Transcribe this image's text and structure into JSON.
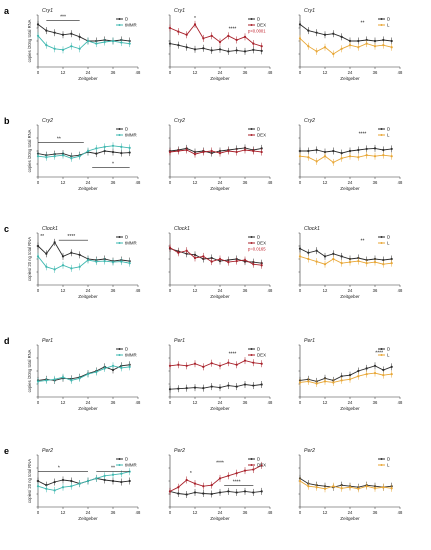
{
  "colors": {
    "D": "#2b2b2b",
    "tMMR": "#3fb8b0",
    "DEX": "#a8202a",
    "L": "#e8a634",
    "pval": "#c0202a"
  },
  "chart_data": [
    {
      "type": "line",
      "row": "a",
      "col": 0,
      "gene": "Cry1",
      "ylabel": "copies /20ng total RNA",
      "xlabel": "Zeitgeber",
      "x": [
        0,
        4,
        8,
        12,
        16,
        20,
        24,
        28,
        32,
        36,
        40,
        44
      ],
      "xticks": [
        0,
        12,
        24,
        36,
        48
      ],
      "xlim": [
        0,
        48
      ],
      "ylim": [
        0,
        1
      ],
      "series": [
        {
          "name": "D",
          "key": "D",
          "values": [
            0.82,
            0.7,
            0.66,
            0.62,
            0.64,
            0.58,
            0.5,
            0.5,
            0.52,
            0.5,
            0.52,
            0.5
          ]
        },
        {
          "name": "tMMR",
          "key": "tMMR",
          "values": [
            0.6,
            0.42,
            0.35,
            0.33,
            0.4,
            0.35,
            0.5,
            0.45,
            0.48,
            0.5,
            0.47,
            0.45
          ]
        }
      ],
      "annotations": [
        {
          "text": "***",
          "x": 12,
          "y": 0.93,
          "line": [
            4,
            20
          ]
        }
      ]
    },
    {
      "type": "line",
      "row": "a",
      "col": 1,
      "gene": "Cry1",
      "ylabel": "",
      "xlabel": "Zeitgeber",
      "x": [
        0,
        4,
        8,
        12,
        16,
        20,
        24,
        28,
        32,
        36,
        40,
        44
      ],
      "xticks": [
        0,
        12,
        24,
        36,
        48
      ],
      "xlim": [
        0,
        48
      ],
      "ylim": [
        0,
        1
      ],
      "series": [
        {
          "name": "D",
          "key": "D",
          "values": [
            0.45,
            0.42,
            0.38,
            0.34,
            0.36,
            0.32,
            0.34,
            0.3,
            0.32,
            0.3,
            0.33,
            0.31
          ]
        },
        {
          "name": "DEX",
          "key": "DEX",
          "values": [
            0.75,
            0.68,
            0.62,
            0.82,
            0.55,
            0.6,
            0.48,
            0.6,
            0.52,
            0.58,
            0.45,
            0.4
          ]
        }
      ],
      "annotations": [
        {
          "text": "*",
          "x": 12,
          "y": 0.9
        },
        {
          "text": "****",
          "x": 30,
          "y": 0.7
        }
      ],
      "pval": "p<0.0001"
    },
    {
      "type": "line",
      "row": "a",
      "col": 2,
      "gene": "Cry1",
      "ylabel": "",
      "xlabel": "Zeitgeber",
      "x": [
        0,
        4,
        8,
        12,
        16,
        20,
        24,
        28,
        32,
        36,
        40,
        44
      ],
      "xticks": [
        0,
        12,
        24,
        36,
        48
      ],
      "xlim": [
        0,
        48
      ],
      "ylim": [
        0,
        1
      ],
      "series": [
        {
          "name": "D",
          "key": "D",
          "values": [
            0.82,
            0.7,
            0.66,
            0.62,
            0.64,
            0.58,
            0.5,
            0.5,
            0.52,
            0.5,
            0.52,
            0.5
          ]
        },
        {
          "name": "L",
          "key": "L",
          "values": [
            0.55,
            0.4,
            0.3,
            0.38,
            0.25,
            0.35,
            0.42,
            0.38,
            0.45,
            0.4,
            0.42,
            0.38
          ]
        }
      ],
      "annotations": [
        {
          "text": "**",
          "x": 30,
          "y": 0.82
        }
      ]
    },
    {
      "type": "line",
      "row": "b",
      "col": 0,
      "gene": "Cry2",
      "ylabel": "copies /20ng total RNA",
      "xlabel": "Zeitgeber",
      "x": [
        0,
        4,
        8,
        12,
        16,
        20,
        24,
        28,
        32,
        36,
        40,
        44
      ],
      "xticks": [
        0,
        12,
        24,
        36,
        48
      ],
      "xlim": [
        0,
        48
      ],
      "ylim": [
        0,
        1
      ],
      "series": [
        {
          "name": "D",
          "key": "D",
          "values": [
            0.45,
            0.42,
            0.44,
            0.45,
            0.4,
            0.42,
            0.48,
            0.45,
            0.5,
            0.48,
            0.46,
            0.47
          ]
        },
        {
          "name": "tMMR",
          "key": "tMMR",
          "values": [
            0.4,
            0.38,
            0.4,
            0.42,
            0.36,
            0.4,
            0.5,
            0.55,
            0.58,
            0.6,
            0.58,
            0.56
          ]
        }
      ],
      "annotations": [
        {
          "text": "**",
          "x": 10,
          "y": 0.7,
          "line": [
            0,
            22
          ]
        },
        {
          "text": "*",
          "x": 36,
          "y": 0.22,
          "line": [
            26,
            44
          ]
        }
      ]
    },
    {
      "type": "line",
      "row": "b",
      "col": 1,
      "gene": "Cry2",
      "ylabel": "",
      "xlabel": "Zeitgeber",
      "x": [
        0,
        4,
        8,
        12,
        16,
        20,
        24,
        28,
        32,
        36,
        40,
        44
      ],
      "xticks": [
        0,
        12,
        24,
        36,
        48
      ],
      "xlim": [
        0,
        48
      ],
      "ylim": [
        0,
        1
      ],
      "series": [
        {
          "name": "D",
          "key": "D",
          "values": [
            0.5,
            0.52,
            0.55,
            0.48,
            0.5,
            0.46,
            0.5,
            0.52,
            0.54,
            0.56,
            0.52,
            0.55
          ]
        },
        {
          "name": "DEX",
          "key": "DEX",
          "values": [
            0.48,
            0.5,
            0.52,
            0.44,
            0.48,
            0.5,
            0.46,
            0.5,
            0.48,
            0.52,
            0.5,
            0.48
          ]
        }
      ],
      "annotations": []
    },
    {
      "type": "line",
      "row": "b",
      "col": 2,
      "gene": "Cry2",
      "ylabel": "",
      "xlabel": "Zeitgeber",
      "x": [
        0,
        4,
        8,
        12,
        16,
        20,
        24,
        28,
        32,
        36,
        40,
        44
      ],
      "xticks": [
        0,
        12,
        24,
        36,
        48
      ],
      "xlim": [
        0,
        48
      ],
      "ylim": [
        0,
        1
      ],
      "series": [
        {
          "name": "D",
          "key": "D",
          "values": [
            0.5,
            0.5,
            0.52,
            0.48,
            0.5,
            0.46,
            0.5,
            0.52,
            0.54,
            0.55,
            0.52,
            0.54
          ]
        },
        {
          "name": "L",
          "key": "L",
          "values": [
            0.4,
            0.38,
            0.3,
            0.4,
            0.28,
            0.36,
            0.4,
            0.38,
            0.42,
            0.4,
            0.42,
            0.4
          ]
        }
      ],
      "annotations": [
        {
          "text": "****",
          "x": 30,
          "y": 0.8
        }
      ]
    },
    {
      "type": "line",
      "row": "c",
      "col": 0,
      "gene": "Clock1",
      "ylabel": "copies/ 20 ng total RNA",
      "xlabel": "Zeitgeber",
      "x": [
        0,
        4,
        8,
        12,
        16,
        20,
        24,
        28,
        32,
        36,
        40,
        44
      ],
      "xticks": [
        0,
        12,
        24,
        36,
        48
      ],
      "xlim": [
        0,
        48
      ],
      "ylim": [
        0,
        1
      ],
      "series": [
        {
          "name": "D",
          "key": "D",
          "values": [
            0.75,
            0.6,
            0.82,
            0.55,
            0.62,
            0.58,
            0.5,
            0.48,
            0.5,
            0.46,
            0.48,
            0.46
          ]
        },
        {
          "name": "tMMR",
          "key": "tMMR",
          "values": [
            0.55,
            0.35,
            0.3,
            0.38,
            0.32,
            0.35,
            0.48,
            0.45,
            0.46,
            0.44,
            0.45,
            0.42
          ]
        }
      ],
      "annotations": [
        {
          "text": "**",
          "x": 2,
          "y": 0.9
        },
        {
          "text": "****",
          "x": 16,
          "y": 0.9,
          "line": [
            10,
            24
          ]
        }
      ]
    },
    {
      "type": "line",
      "row": "c",
      "col": 1,
      "gene": "Clock1",
      "ylabel": "",
      "xlabel": "Zeitgeber",
      "x": [
        0,
        4,
        8,
        12,
        16,
        20,
        24,
        28,
        32,
        36,
        40,
        44
      ],
      "xticks": [
        0,
        12,
        24,
        36,
        48
      ],
      "xlim": [
        0,
        48
      ],
      "ylim": [
        0,
        1
      ],
      "series": [
        {
          "name": "D",
          "key": "D",
          "values": [
            0.7,
            0.65,
            0.6,
            0.58,
            0.5,
            0.52,
            0.46,
            0.48,
            0.5,
            0.45,
            0.44,
            0.42
          ]
        },
        {
          "name": "DEX",
          "key": "DEX",
          "values": [
            0.72,
            0.62,
            0.66,
            0.52,
            0.55,
            0.45,
            0.5,
            0.44,
            0.46,
            0.48,
            0.4,
            0.38
          ]
        }
      ],
      "annotations": [],
      "pval": "p=0.0165"
    },
    {
      "type": "line",
      "row": "c",
      "col": 2,
      "gene": "Clock1",
      "ylabel": "",
      "xlabel": "Zeitgeber",
      "x": [
        0,
        4,
        8,
        12,
        16,
        20,
        24,
        28,
        32,
        36,
        40,
        44
      ],
      "xticks": [
        0,
        12,
        24,
        36,
        48
      ],
      "xlim": [
        0,
        48
      ],
      "ylim": [
        0,
        1
      ],
      "series": [
        {
          "name": "D",
          "key": "D",
          "values": [
            0.7,
            0.62,
            0.66,
            0.55,
            0.6,
            0.55,
            0.5,
            0.52,
            0.48,
            0.5,
            0.48,
            0.5
          ]
        },
        {
          "name": "L",
          "key": "L",
          "values": [
            0.55,
            0.5,
            0.45,
            0.4,
            0.5,
            0.42,
            0.44,
            0.46,
            0.42,
            0.44,
            0.4,
            0.42
          ]
        }
      ],
      "annotations": [
        {
          "text": "**",
          "x": 30,
          "y": 0.82
        }
      ]
    },
    {
      "type": "line",
      "row": "d",
      "col": 0,
      "gene": "Per1",
      "ylabel": "copies /20ng total RNA",
      "xlabel": "Zeitgeber",
      "x": [
        0,
        4,
        8,
        12,
        16,
        20,
        24,
        28,
        32,
        36,
        40,
        44
      ],
      "xticks": [
        0,
        12,
        24,
        36,
        48
      ],
      "xlim": [
        0,
        48
      ],
      "ylim": [
        0,
        1
      ],
      "series": [
        {
          "name": "D",
          "key": "D",
          "values": [
            0.32,
            0.34,
            0.32,
            0.36,
            0.35,
            0.38,
            0.45,
            0.5,
            0.58,
            0.52,
            0.6,
            0.62
          ]
        },
        {
          "name": "tMMR",
          "key": "tMMR",
          "values": [
            0.3,
            0.32,
            0.34,
            0.38,
            0.32,
            0.36,
            0.44,
            0.48,
            0.55,
            0.6,
            0.56,
            0.58
          ]
        }
      ],
      "annotations": []
    },
    {
      "type": "line",
      "row": "d",
      "col": 1,
      "gene": "Per1",
      "ylabel": "",
      "xlabel": "Zeitgeber",
      "x": [
        0,
        4,
        8,
        12,
        16,
        20,
        24,
        28,
        32,
        36,
        40,
        44
      ],
      "xticks": [
        0,
        12,
        24,
        36,
        48
      ],
      "xlim": [
        0,
        48
      ],
      "ylim": [
        0,
        1
      ],
      "series": [
        {
          "name": "D",
          "key": "D",
          "values": [
            0.15,
            0.16,
            0.17,
            0.18,
            0.17,
            0.2,
            0.18,
            0.22,
            0.2,
            0.24,
            0.22,
            0.24
          ]
        },
        {
          "name": "DEX",
          "key": "DEX",
          "values": [
            0.6,
            0.62,
            0.6,
            0.64,
            0.58,
            0.65,
            0.6,
            0.66,
            0.62,
            0.7,
            0.66,
            0.64
          ]
        }
      ],
      "annotations": [
        {
          "text": "****",
          "x": 30,
          "y": 0.8
        }
      ]
    },
    {
      "type": "line",
      "row": "d",
      "col": 2,
      "gene": "Per1",
      "ylabel": "",
      "xlabel": "Zeitgeber",
      "x": [
        0,
        4,
        8,
        12,
        16,
        20,
        24,
        28,
        32,
        36,
        40,
        44
      ],
      "xticks": [
        0,
        12,
        24,
        36,
        48
      ],
      "xlim": [
        0,
        48
      ],
      "ylim": [
        0,
        1
      ],
      "series": [
        {
          "name": "D",
          "key": "D",
          "values": [
            0.32,
            0.34,
            0.3,
            0.36,
            0.32,
            0.4,
            0.42,
            0.5,
            0.55,
            0.6,
            0.52,
            0.58
          ]
        },
        {
          "name": "L",
          "key": "L",
          "values": [
            0.28,
            0.3,
            0.26,
            0.3,
            0.28,
            0.32,
            0.34,
            0.4,
            0.44,
            0.46,
            0.42,
            0.44
          ]
        }
      ],
      "annotations": [
        {
          "text": "****",
          "x": 38,
          "y": 0.82
        }
      ]
    },
    {
      "type": "line",
      "row": "e",
      "col": 0,
      "gene": "Per2",
      "ylabel": "copies/ 20 ng total RNA",
      "xlabel": "Zeitgeber",
      "x": [
        0,
        4,
        8,
        12,
        16,
        20,
        24,
        28,
        32,
        36,
        40,
        44
      ],
      "xticks": [
        0,
        12,
        24,
        36,
        48
      ],
      "xlim": [
        0,
        48
      ],
      "ylim": [
        0,
        1
      ],
      "series": [
        {
          "name": "D",
          "key": "D",
          "values": [
            0.5,
            0.42,
            0.48,
            0.52,
            0.5,
            0.45,
            0.5,
            0.55,
            0.52,
            0.5,
            0.48,
            0.5
          ]
        },
        {
          "name": "tMMR",
          "key": "tMMR",
          "values": [
            0.4,
            0.35,
            0.32,
            0.38,
            0.4,
            0.45,
            0.5,
            0.55,
            0.6,
            0.62,
            0.64,
            0.68
          ]
        }
      ],
      "annotations": [
        {
          "text": "*",
          "x": 10,
          "y": 0.72,
          "line": [
            0,
            24
          ]
        },
        {
          "text": "**",
          "x": 36,
          "y": 0.72,
          "line": [
            28,
            44
          ]
        }
      ]
    },
    {
      "type": "line",
      "row": "e",
      "col": 1,
      "gene": "Per2",
      "ylabel": "",
      "xlabel": "Zeitgeber",
      "x": [
        0,
        4,
        8,
        12,
        16,
        20,
        24,
        28,
        32,
        36,
        40,
        44
      ],
      "xticks": [
        0,
        12,
        24,
        36,
        48
      ],
      "xlim": [
        0,
        48
      ],
      "ylim": [
        0,
        1
      ],
      "series": [
        {
          "name": "D",
          "key": "D",
          "values": [
            0.3,
            0.26,
            0.24,
            0.28,
            0.26,
            0.25,
            0.28,
            0.3,
            0.28,
            0.3,
            0.28,
            0.3
          ]
        },
        {
          "name": "DEX",
          "key": "DEX",
          "values": [
            0.3,
            0.38,
            0.52,
            0.45,
            0.4,
            0.42,
            0.55,
            0.6,
            0.65,
            0.7,
            0.72,
            0.8
          ]
        }
      ],
      "annotations": [
        {
          "text": "*",
          "x": 10,
          "y": 0.62
        },
        {
          "text": "****",
          "x": 32,
          "y": 0.45,
          "line": [
            26,
            40
          ]
        },
        {
          "text": "****",
          "x": 24,
          "y": 0.82
        }
      ]
    },
    {
      "type": "line",
      "row": "e",
      "col": 2,
      "gene": "Per2",
      "ylabel": "",
      "xlabel": "Zeitgeber",
      "x": [
        0,
        4,
        8,
        12,
        16,
        20,
        24,
        28,
        32,
        36,
        40,
        44
      ],
      "xticks": [
        0,
        12,
        24,
        36,
        48
      ],
      "xlim": [
        0,
        48
      ],
      "ylim": [
        0,
        1
      ],
      "series": [
        {
          "name": "D",
          "key": "D",
          "values": [
            0.55,
            0.45,
            0.42,
            0.4,
            0.38,
            0.42,
            0.4,
            0.38,
            0.42,
            0.4,
            0.38,
            0.4
          ]
        },
        {
          "name": "L",
          "key": "L",
          "values": [
            0.5,
            0.4,
            0.38,
            0.35,
            0.4,
            0.36,
            0.38,
            0.35,
            0.4,
            0.36,
            0.38,
            0.36
          ]
        }
      ],
      "annotations": []
    }
  ],
  "row_labels": [
    "a",
    "b",
    "c",
    "d",
    "e"
  ]
}
